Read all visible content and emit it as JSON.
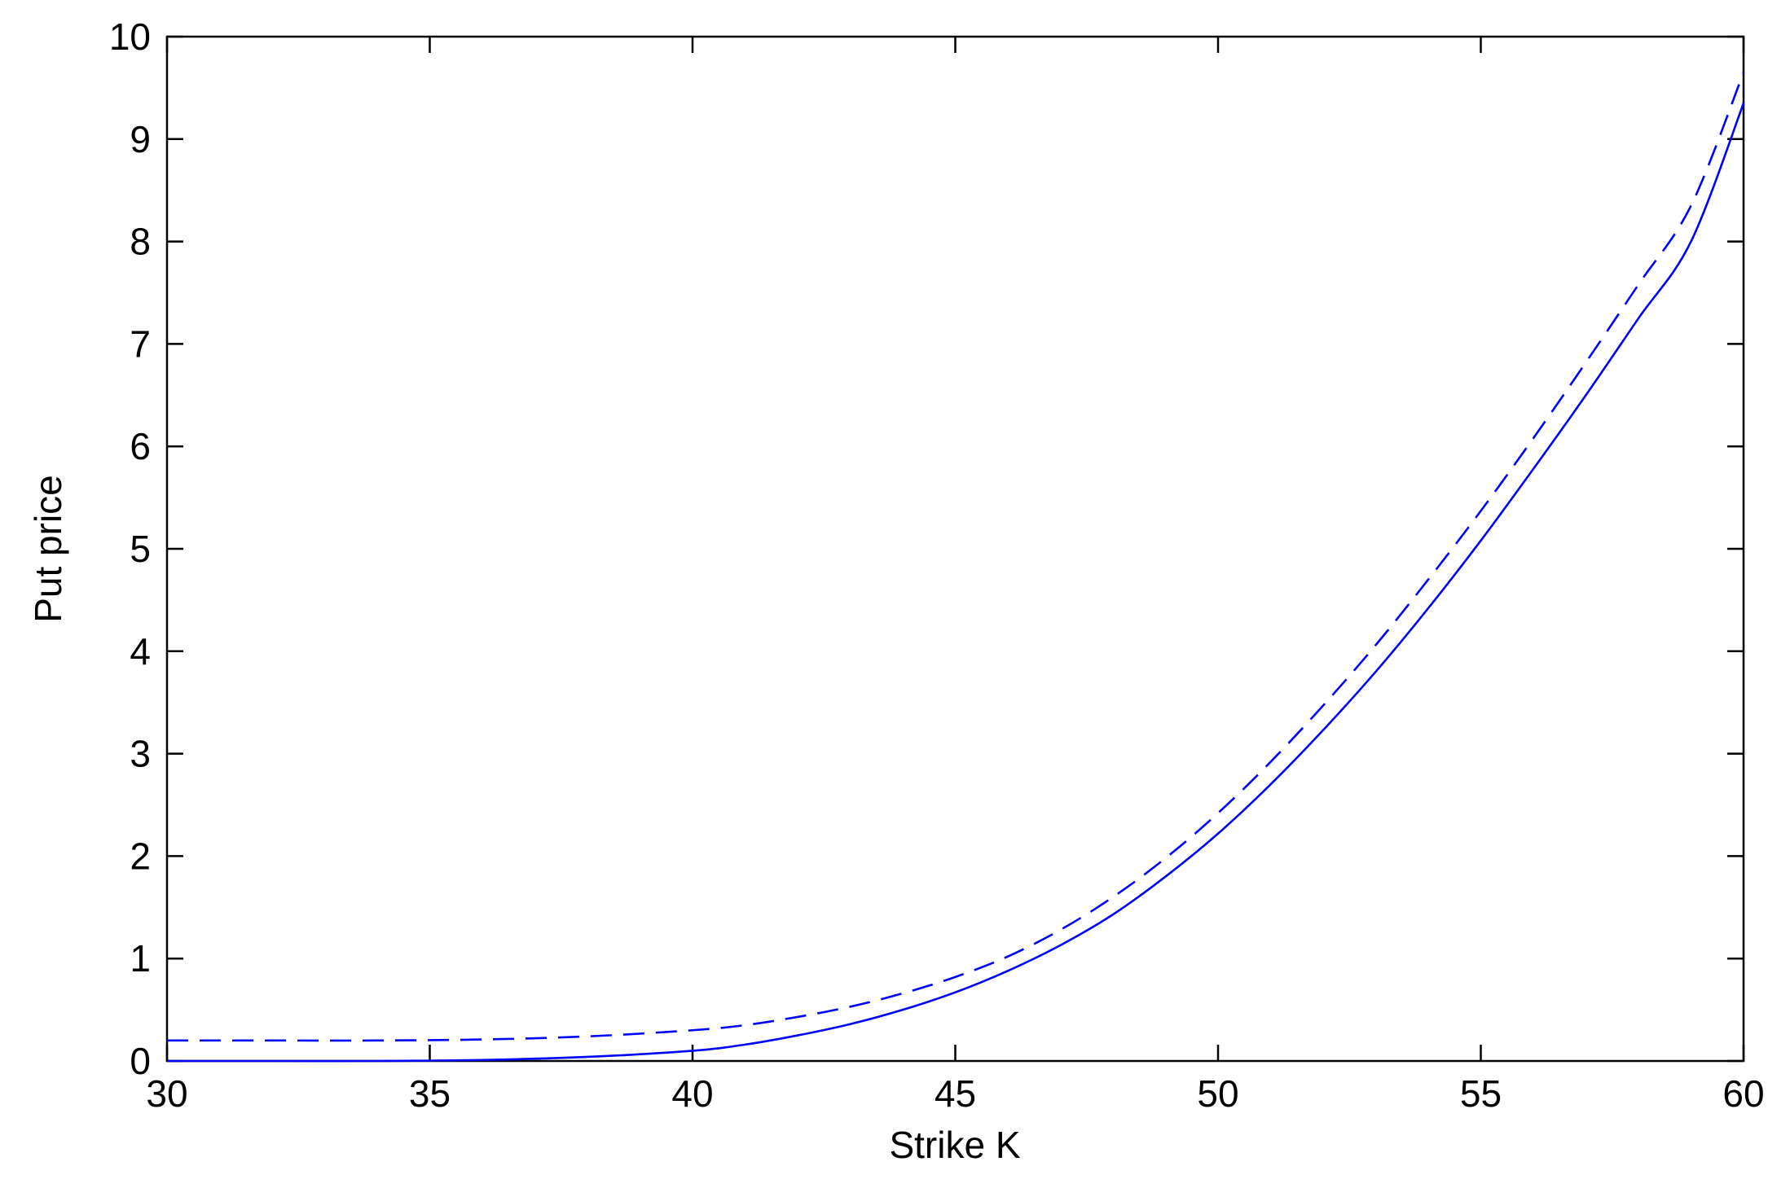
{
  "chart_data": {
    "type": "line",
    "title": "",
    "xlabel": "Strike K",
    "ylabel": "Put price",
    "xlim": [
      30,
      60
    ],
    "ylim": [
      0,
      10
    ],
    "xticks": [
      30,
      35,
      40,
      45,
      50,
      55,
      60
    ],
    "yticks": [
      0,
      1,
      2,
      3,
      4,
      5,
      6,
      7,
      8,
      9,
      10
    ],
    "xtick_labels": [
      "30",
      "35",
      "40",
      "45",
      "50",
      "55",
      "60"
    ],
    "ytick_labels": [
      "0",
      "1",
      "2",
      "3",
      "4",
      "5",
      "6",
      "7",
      "8",
      "9",
      "10"
    ],
    "grid": false,
    "legend": null,
    "x": [
      30,
      32,
      34,
      36,
      38,
      40,
      41,
      42,
      43,
      44,
      45,
      46,
      47,
      48,
      49,
      50,
      51,
      52,
      53,
      54,
      55,
      56,
      57,
      58,
      59,
      60
    ],
    "series": [
      {
        "style": "solid",
        "color": "#0000ff",
        "values": [
          0.0,
          0.0,
          0.0,
          0.01,
          0.04,
          0.1,
          0.16,
          0.25,
          0.36,
          0.5,
          0.67,
          0.88,
          1.13,
          1.43,
          1.8,
          2.22,
          2.7,
          3.23,
          3.8,
          4.42,
          5.08,
          5.78,
          6.5,
          7.25,
          8.0,
          9.35
        ]
      },
      {
        "style": "dashed",
        "color": "#0000ff",
        "values": [
          0.2,
          0.2,
          0.2,
          0.21,
          0.24,
          0.3,
          0.35,
          0.43,
          0.53,
          0.66,
          0.82,
          1.02,
          1.28,
          1.6,
          1.98,
          2.42,
          2.92,
          3.47,
          4.06,
          4.7,
          5.37,
          6.08,
          6.82,
          7.58,
          8.35,
          9.65
        ]
      }
    ]
  }
}
